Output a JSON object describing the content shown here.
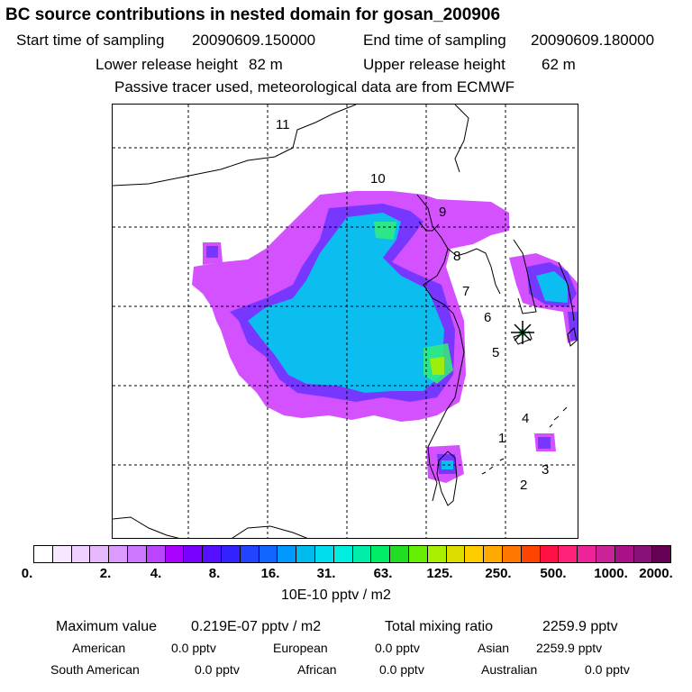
{
  "title": "BC  source contributions in nested domain for gosan_200906",
  "header": {
    "start_label": "Start time of sampling",
    "start_value": "20090609.150000",
    "end_label": "End time of sampling",
    "end_value": "20090609.180000",
    "lower_label": "Lower release height",
    "lower_value": "82 m",
    "upper_label": "Upper release height",
    "upper_value": "62 m",
    "tracer_note": "Passive tracer used, meteorological data are from ECMWF"
  },
  "map": {
    "region_labels": [
      "11",
      "10",
      "9",
      "8",
      "7",
      "6",
      "5",
      "4",
      "1",
      "3",
      "2"
    ],
    "receptor_marker": "asterisk-icon",
    "plume_colors": {
      "outer": "#cc33ff",
      "mid": "#6633ff",
      "inner": "#00ccee",
      "core": "#33ee77",
      "hot": "#aaee00"
    }
  },
  "colorbar": {
    "colors": [
      "#ffffff",
      "#f8e8ff",
      "#f0d0ff",
      "#e8b8ff",
      "#dc99ff",
      "#cc77ff",
      "#bb44ff",
      "#aa00ff",
      "#7700ff",
      "#5511ff",
      "#3322ff",
      "#2244ff",
      "#1166ff",
      "#0099ff",
      "#00bbee",
      "#00ddee",
      "#00eedd",
      "#00eeaa",
      "#00ee66",
      "#22dd22",
      "#66ee00",
      "#aaee00",
      "#dddd00",
      "#ffcc00",
      "#ffaa00",
      "#ff7700",
      "#ff4400",
      "#ff1144",
      "#ff2277",
      "#ee2299",
      "#cc2299",
      "#aa1188",
      "#881177",
      "#660055"
    ],
    "ticks": [
      "0.",
      "2.",
      "4.",
      "8.",
      "16.",
      "31.",
      "63.",
      "125.",
      "250.",
      "500.",
      "1000.",
      "2000."
    ],
    "unit": "10E-10 pptv / m2"
  },
  "stats": {
    "max_label": "Maximum value",
    "max_value": "0.219E-07 pptv / m2",
    "total_label": "Total mixing ratio",
    "total_value": "2259.9 pptv",
    "regions": [
      {
        "name": "American",
        "value": "0.0 pptv"
      },
      {
        "name": "European",
        "value": "0.0 pptv"
      },
      {
        "name": "Asian",
        "value": "2259.9 pptv"
      },
      {
        "name": "South American",
        "value": "0.0 pptv"
      },
      {
        "name": "African",
        "value": "0.0 pptv"
      },
      {
        "name": "Australian",
        "value": "0.0 pptv"
      }
    ]
  }
}
